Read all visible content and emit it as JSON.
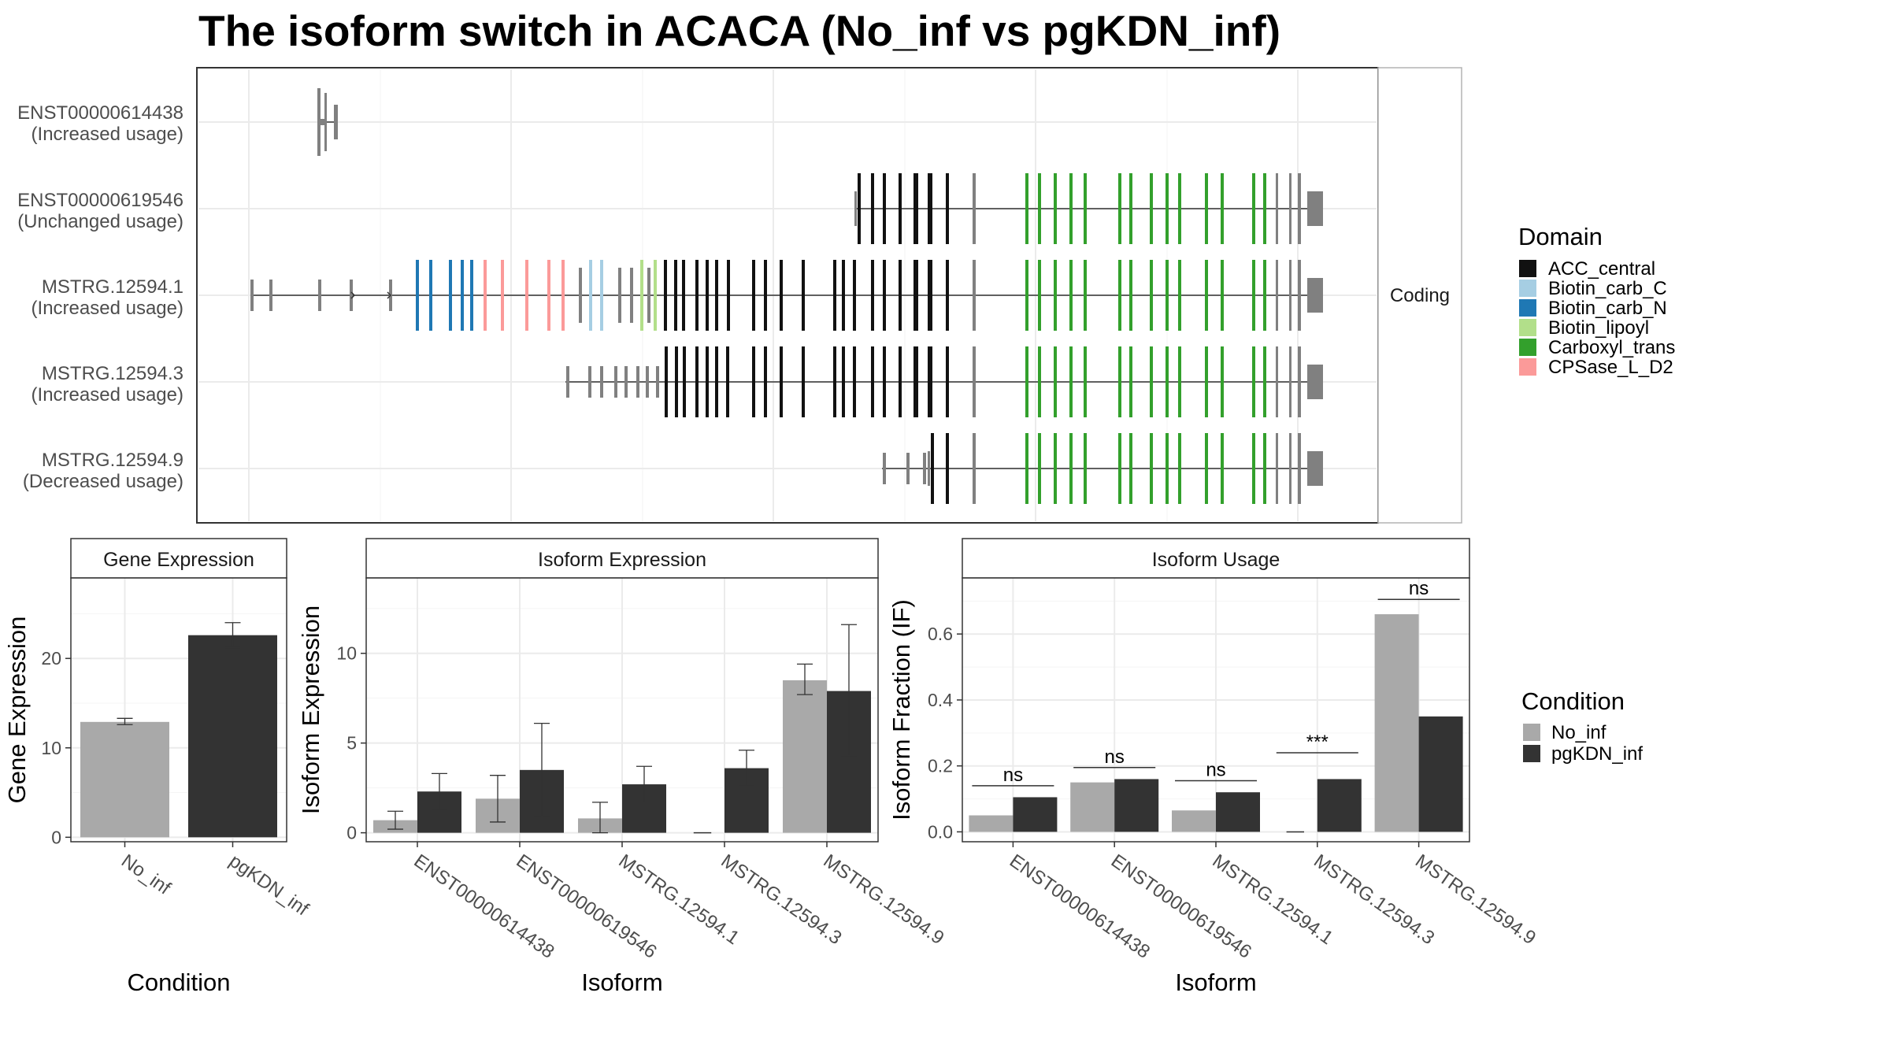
{
  "title": "The isoform switch in ACACA (No_inf vs pgKDN_inf)",
  "structure_panel": {
    "strip_label": "Coding",
    "legend_title": "Domain",
    "domains": [
      {
        "name": "ACC_central",
        "color": "#111111"
      },
      {
        "name": "Biotin_carb_C",
        "color": "#a6cee3"
      },
      {
        "name": "Biotin_carb_N",
        "color": "#1f78b4"
      },
      {
        "name": "Biotin_lipoyl",
        "color": "#b2df8a"
      },
      {
        "name": "Carboxyl_trans",
        "color": "#33a02c"
      },
      {
        "name": "CPSase_L_D2",
        "color": "#fb9a99"
      }
    ],
    "noncoding_color": "#808080",
    "transcripts": [
      {
        "id": "ENST00000614438",
        "status": "(Increased usage)"
      },
      {
        "id": "ENST00000619546",
        "status": "(Unchanged usage)"
      },
      {
        "id": "MSTRG.12594.1",
        "status": "(Increased usage)"
      },
      {
        "id": "MSTRG.12594.3",
        "status": "(Increased usage)"
      },
      {
        "id": "MSTRG.12594.9",
        "status": "(Decreased usage)"
      }
    ]
  },
  "condition_legend": {
    "title": "Condition",
    "items": [
      {
        "name": "No_inf",
        "color": "#a9a9a9"
      },
      {
        "name": "pgKDN_inf",
        "color": "#333333"
      }
    ]
  },
  "chart_data": [
    {
      "type": "bar",
      "title": "Gene Expression",
      "xlabel": "Condition",
      "ylabel": "Gene Expression",
      "categories": [
        "No_inf",
        "pgKDN_inf"
      ],
      "values": [
        12.9,
        22.6
      ],
      "error_low": [
        12.6,
        21.2
      ],
      "error_high": [
        13.3,
        24.0
      ],
      "colors": [
        "#a9a9a9",
        "#333333"
      ],
      "ylim": [
        -0.5,
        29
      ],
      "yticks": [
        0,
        10,
        20
      ],
      "grid": true
    },
    {
      "type": "bar",
      "title": "Isoform Expression",
      "xlabel": "Isoform",
      "ylabel": "Isoform Expression",
      "categories": [
        "ENST00000614438",
        "ENST00000619546",
        "MSTRG.12594.1",
        "MSTRG.12594.3",
        "MSTRG.12594.9"
      ],
      "series": [
        {
          "name": "No_inf",
          "values": [
            0.7,
            1.9,
            0.8,
            0.0,
            8.5
          ],
          "error_low": [
            0.2,
            0.6,
            0.0,
            0.0,
            7.7
          ],
          "error_high": [
            1.2,
            3.2,
            1.7,
            0.0,
            9.4
          ]
        },
        {
          "name": "pgKDN_inf",
          "values": [
            2.3,
            3.5,
            2.7,
            3.6,
            7.9
          ],
          "error_low": [
            1.3,
            0.9,
            1.7,
            2.6,
            4.3
          ],
          "error_high": [
            3.3,
            6.1,
            3.7,
            4.6,
            11.6
          ]
        }
      ],
      "ylim": [
        -0.5,
        14.2
      ],
      "yticks": [
        0,
        5,
        10
      ],
      "grid": true
    },
    {
      "type": "bar",
      "title": "Isoform Usage",
      "xlabel": "Isoform",
      "ylabel": "Isoform Fraction (IF)",
      "categories": [
        "ENST00000614438",
        "ENST00000619546",
        "MSTRG.12594.1",
        "MSTRG.12594.3",
        "MSTRG.12594.9"
      ],
      "series": [
        {
          "name": "No_inf",
          "values": [
            0.05,
            0.15,
            0.065,
            0.0,
            0.66
          ]
        },
        {
          "name": "pgKDN_inf",
          "values": [
            0.105,
            0.16,
            0.12,
            0.16,
            0.35
          ]
        }
      ],
      "significance": [
        "ns",
        "ns",
        "ns",
        "***",
        "ns"
      ],
      "significance_level": [
        0.14,
        0.195,
        0.155,
        0.24,
        0.705
      ],
      "ylim": [
        -0.03,
        0.77
      ],
      "yticks": [
        0.0,
        0.2,
        0.4,
        0.6
      ],
      "ytick_labels": [
        "0.0",
        "0.2",
        "0.4",
        "0.6"
      ],
      "grid": true
    }
  ]
}
